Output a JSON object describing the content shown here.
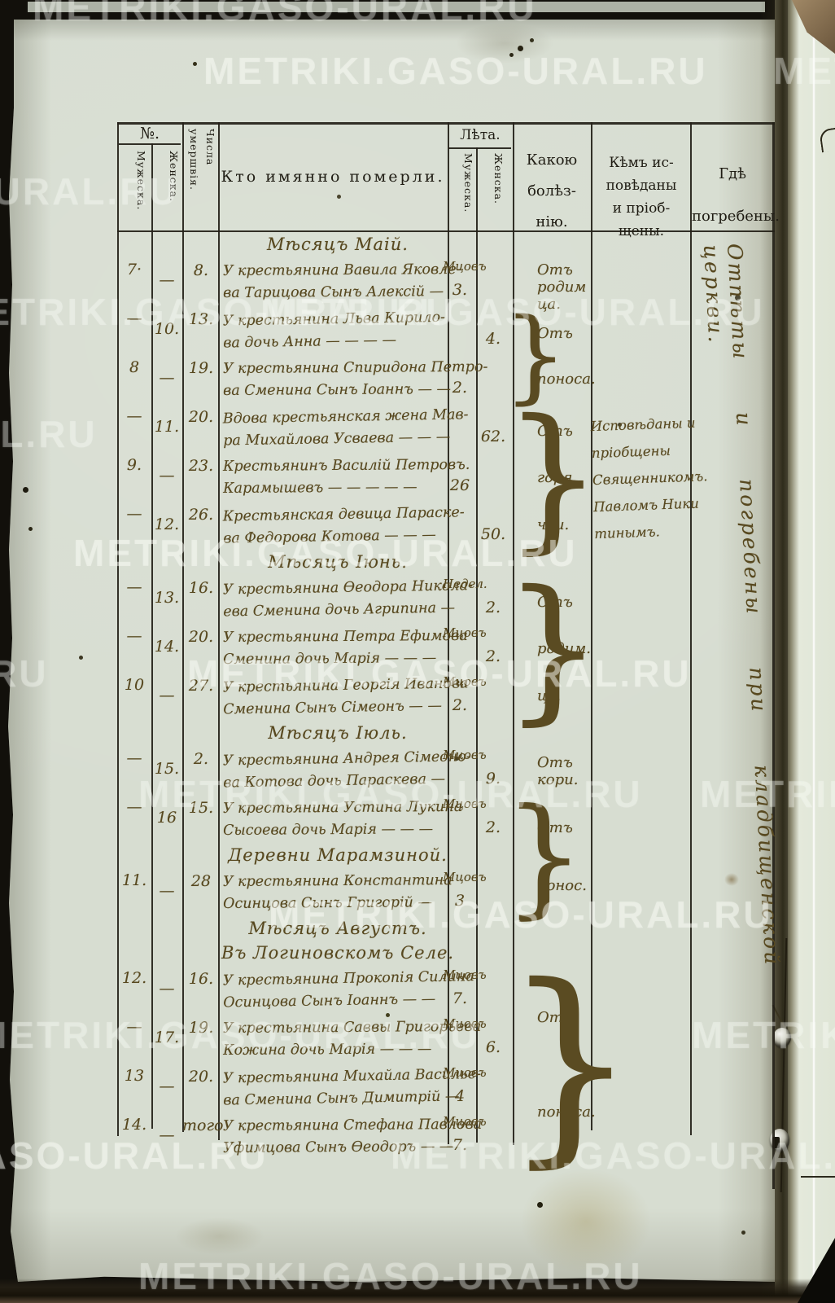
{
  "watermark": {
    "text": "METRIKI.GASO-URAL.RU"
  },
  "table": {
    "header": {
      "no_label": "№.",
      "male": "Мужеска.",
      "female": "Женска.",
      "date_label": "Числа умершвія.",
      "who": "Кто имянно померли.",
      "years": "Лѣта.",
      "years_male": "Мужеска.",
      "years_female": "Женска.",
      "disease_lines": [
        "Какою",
        "болѣз-",
        "нію."
      ],
      "confessed_lines": [
        "Кѣмъ ис-",
        "повѣданы",
        "и пріоб-",
        "щены."
      ],
      "buried_lines": [
        "Гдѣ",
        "погребены."
      ]
    },
    "blocks": [
      {
        "type": "section",
        "text": "Мѣсяцъ Маій."
      },
      {
        "type": "row",
        "no_m": "7·",
        "no_f": "—",
        "date": "8.",
        "name": [
          "У крестьянина Вавила Яковле-",
          "ва Тарицова Сынъ Алексій —"
        ],
        "unit": "Мцовъ",
        "age_m": "3.",
        "age_f": "",
        "cause": {
          "lines": [
            "Отъ родим",
            "ца."
          ],
          "rows": 1,
          "brace": false
        }
      },
      {
        "type": "row",
        "no_m": "—",
        "no_f": "10.",
        "date": "13.",
        "name": [
          "У крестьянина Льва Кирило-",
          "ва дочь Анна — — — —"
        ],
        "unit": "",
        "age_m": "",
        "age_f": "4.",
        "cause": {
          "lines": [
            "Отъ",
            "поноса."
          ],
          "rows": 2,
          "brace": true
        }
      },
      {
        "type": "row",
        "no_m": "8",
        "no_f": "—",
        "date": "19.",
        "name": [
          "У крестьянина Спиридона Петро-",
          "ва Сменина Сынъ Іоаннъ — —"
        ],
        "unit": "",
        "age_m": "2.",
        "age_f": ""
      },
      {
        "type": "row",
        "no_m": "—",
        "no_f": "11.",
        "date": "20.",
        "name": [
          "Вдова крестьянская жена Мав-",
          "ра Михайлова Усваева — — —"
        ],
        "unit": "",
        "age_m": "",
        "age_f": "62.",
        "cause": {
          "lines": [
            "Отъ",
            "горя.",
            "чки."
          ],
          "rows": 3,
          "brace": true
        }
      },
      {
        "type": "row",
        "no_m": "9.",
        "no_f": "—",
        "date": "23.",
        "name": [
          "Крестьянинъ Василій Петровъ.",
          "Карамышевъ — — — — —"
        ],
        "unit": "",
        "age_m": "26",
        "age_f": ""
      },
      {
        "type": "row",
        "no_m": "—",
        "no_f": "12.",
        "date": "26.",
        "name": [
          "Крестьянская девица Параске-",
          "ва Федорова Котова — — —"
        ],
        "unit": "",
        "age_m": "",
        "age_f": "50."
      },
      {
        "type": "section",
        "text": "Мѣсяцъ Іюнь."
      },
      {
        "type": "row",
        "no_m": "—",
        "no_f": "13.",
        "date": "16.",
        "name": [
          "У крестьянина Ѳеодора Никола-",
          "ева Сменина дочь Агрипина —"
        ],
        "unit": "Недел.",
        "age_m": "",
        "age_f": "2.",
        "cause": {
          "lines": [
            "Отъ",
            "родим.",
            "ца."
          ],
          "rows": 3,
          "brace": true
        }
      },
      {
        "type": "row",
        "no_m": "—",
        "no_f": "14.",
        "date": "20.",
        "name": [
          "У крестьянина Петра Ефимова",
          "Сменина дочь Марія — — —"
        ],
        "unit": "Мцовъ",
        "age_m": "",
        "age_f": "2."
      },
      {
        "type": "row",
        "no_m": "10",
        "no_f": "—",
        "date": "27.",
        "name": [
          "У крестьянина Георгія Иванова",
          "Сменина Сынъ Сімеонъ — —"
        ],
        "unit": "Мцовъ",
        "age_m": "2.",
        "age_f": ""
      },
      {
        "type": "section",
        "text": "Мѣсяцъ Іюль."
      },
      {
        "type": "row",
        "no_m": "—",
        "no_f": "15.",
        "date": "2.",
        "name": [
          "У крестьянина Андрея Сімеоно-",
          "ва Котова дочь Параскева —"
        ],
        "unit": "Мцовъ",
        "age_m": "",
        "age_f": "9.",
        "cause": {
          "lines": [
            "Отъ кори."
          ],
          "rows": 1,
          "brace": false
        }
      },
      {
        "type": "row",
        "no_m": "—",
        "no_f": "16",
        "date": "15.",
        "name": [
          "У крестьянина Устина Лукина",
          "Сысоева дочь Марія — — —"
        ],
        "unit": "Мцовъ",
        "age_m": "",
        "age_f": "2.",
        "cause": {
          "lines": [
            "Отъ",
            "понос."
          ],
          "rows": 2,
          "headers": 1,
          "brace": true
        }
      },
      {
        "type": "section",
        "text": "Деревни Марамзиной."
      },
      {
        "type": "row",
        "no_m": "11.",
        "no_f": "—",
        "date": "28",
        "name": [
          "У крестьянина Константина",
          "Осинцова Сынъ Григорій —"
        ],
        "unit": "Мцовъ",
        "age_m": "3",
        "age_f": ""
      },
      {
        "type": "section",
        "text": "Мѣсяцъ Августъ."
      },
      {
        "type": "section",
        "text": "Въ Логиновскомъ Селе."
      },
      {
        "type": "row",
        "no_m": "12.",
        "no_f": "—",
        "date": "16.",
        "name": [
          "У крестьянина Прокопія Силина",
          "Осинцова Сынъ Іоаннъ — —"
        ],
        "unit": "Мцовъ",
        "age_m": "7.",
        "age_f": "",
        "cause": {
          "lines": [
            "Отъ",
            "поноса."
          ],
          "rows": 4,
          "brace": true
        }
      },
      {
        "type": "row",
        "no_m": "—",
        "no_f": "17.",
        "date": "19.",
        "name": [
          "У крестьянина Саввы Григорьева",
          "Кожина дочь Марія — — —"
        ],
        "unit": "Мцовъ",
        "age_m": "",
        "age_f": "6."
      },
      {
        "type": "row",
        "no_m": "13",
        "no_f": "—",
        "date": "20.",
        "name": [
          "У крестьянина Михайла Василье-",
          "ва Сменина Сынъ Димитрій —"
        ],
        "unit": "Мцовъ",
        "age_m": "4",
        "age_f": ""
      },
      {
        "type": "row",
        "no_m": "14.",
        "no_f": "—",
        "date": "того",
        "name": [
          "У крестьянина Стефана Павлова",
          "Уфимцова Сынъ Ѳеодоръ — —"
        ],
        "unit": "Мцовъ",
        "age_m": "7.",
        "age_f": ""
      }
    ]
  },
  "annotations": {
    "confessor_lines": [
      "Исповѣданы и",
      "пріобщены",
      "Священникомъ.",
      "Павломъ Ники",
      "тинымъ."
    ],
    "burial": "Отпѣты и погребены при кладбищенской церкви."
  },
  "colors": {
    "ink": "#57481f",
    "print": "#1f1c13",
    "paper": "#d7ddd1",
    "watermark": "#fcfef8"
  }
}
